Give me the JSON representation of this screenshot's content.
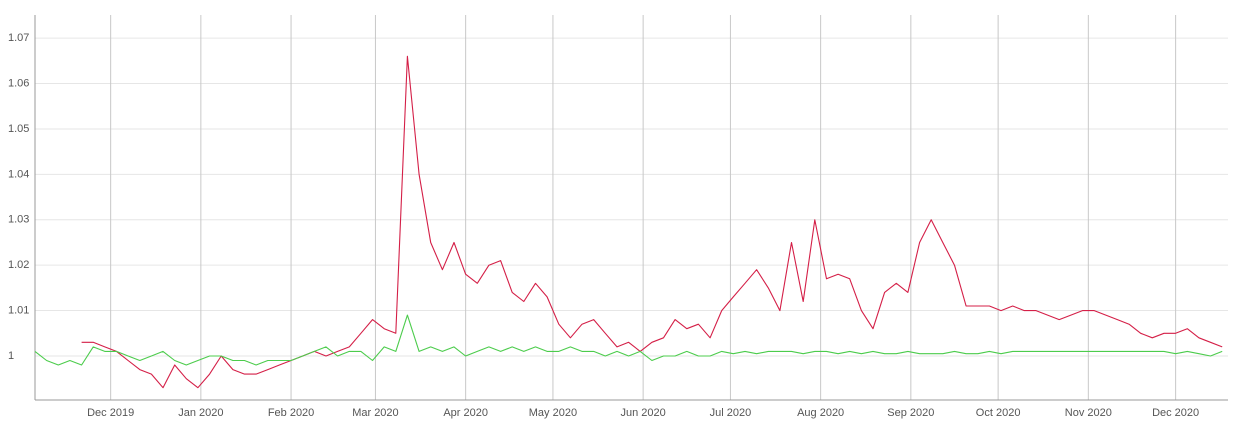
{
  "chart_data": {
    "type": "line",
    "x": [
      -26,
      -22,
      -18,
      -14,
      -10,
      -6,
      -2,
      2,
      6,
      10,
      14,
      18,
      22,
      26,
      30,
      34,
      38,
      42,
      46,
      50,
      54,
      58,
      62,
      66,
      70,
      74,
      78,
      82,
      86,
      90,
      94,
      98,
      102,
      106,
      110,
      114,
      118,
      122,
      126,
      130,
      134,
      138,
      142,
      146,
      150,
      154,
      158,
      162,
      166,
      170,
      174,
      178,
      182,
      186,
      190,
      194,
      198,
      202,
      206,
      210,
      214,
      218,
      222,
      226,
      230,
      234,
      238,
      242,
      246,
      250,
      254,
      258,
      262,
      266,
      270,
      274,
      278,
      282,
      286,
      290,
      294,
      298,
      302,
      306,
      310,
      314,
      318,
      322,
      326,
      330,
      334,
      338,
      342,
      346,
      350,
      354,
      358,
      362,
      366,
      370,
      374,
      378,
      382
    ],
    "series": [
      {
        "color": "#d41f47",
        "values": [
          null,
          null,
          null,
          null,
          1.003,
          1.003,
          1.002,
          1.001,
          0.999,
          0.997,
          0.996,
          0.993,
          0.998,
          0.995,
          0.993,
          0.996,
          1.0,
          0.997,
          0.996,
          0.996,
          0.997,
          0.998,
          0.999,
          1.0,
          1.001,
          1.0,
          1.001,
          1.002,
          1.005,
          1.008,
          1.006,
          1.005,
          1.066,
          1.04,
          1.025,
          1.019,
          1.025,
          1.018,
          1.016,
          1.02,
          1.021,
          1.014,
          1.012,
          1.016,
          1.013,
          1.007,
          1.004,
          1.007,
          1.008,
          1.005,
          1.002,
          1.003,
          1.001,
          1.003,
          1.004,
          1.008,
          1.006,
          1.007,
          1.004,
          1.01,
          1.013,
          1.016,
          1.019,
          1.015,
          1.01,
          1.025,
          1.012,
          1.03,
          1.017,
          1.018,
          1.017,
          1.01,
          1.006,
          1.014,
          1.016,
          1.014,
          1.025,
          1.03,
          1.025,
          1.02,
          1.011,
          1.011,
          1.011,
          1.01,
          1.011,
          1.01,
          1.01,
          1.009,
          1.008,
          1.009,
          1.01,
          1.01,
          1.009,
          1.008,
          1.007,
          1.005,
          1.004,
          1.005,
          1.005,
          1.006,
          1.004,
          1.003,
          1.002
        ]
      },
      {
        "color": "#4ccc4c",
        "values": [
          1.001,
          0.999,
          0.998,
          0.999,
          0.998,
          1.002,
          1.001,
          1.001,
          1.0,
          0.999,
          1.0,
          1.001,
          0.999,
          0.998,
          0.999,
          1.0,
          1.0,
          0.999,
          0.999,
          0.998,
          0.999,
          0.999,
          0.999,
          1.0,
          1.001,
          1.002,
          1.0,
          1.001,
          1.001,
          0.999,
          1.002,
          1.001,
          1.009,
          1.001,
          1.002,
          1.001,
          1.002,
          1.0,
          1.001,
          1.002,
          1.001,
          1.002,
          1.001,
          1.002,
          1.001,
          1.001,
          1.002,
          1.001,
          1.001,
          1.0,
          1.001,
          1.0,
          1.001,
          0.999,
          1.0,
          1.0,
          1.001,
          1.0,
          1.0,
          1.001,
          1.0005,
          1.001,
          1.0005,
          1.001,
          1.001,
          1.001,
          1.0005,
          1.001,
          1.001,
          1.0005,
          1.001,
          1.0005,
          1.001,
          1.0005,
          1.0005,
          1.001,
          1.0005,
          1.0005,
          1.0005,
          1.001,
          1.0005,
          1.0005,
          1.001,
          1.0005,
          1.001,
          1.001,
          1.001,
          1.001,
          1.001,
          1.001,
          1.001,
          1.001,
          1.001,
          1.001,
          1.001,
          1.001,
          1.001,
          1.001,
          1.0005,
          1.001,
          1.0005,
          1.0,
          1.001
        ]
      }
    ],
    "xlim": [
      -26,
      384
    ],
    "ylim": [
      0.9903,
      1.0751
    ],
    "xticks": [
      {
        "value": 0,
        "label": "Dec 2019"
      },
      {
        "value": 31,
        "label": "Jan 2020"
      },
      {
        "value": 62,
        "label": "Feb 2020"
      },
      {
        "value": 91,
        "label": "Mar 2020"
      },
      {
        "value": 122,
        "label": "Apr 2020"
      },
      {
        "value": 152,
        "label": "May 2020"
      },
      {
        "value": 183,
        "label": "Jun 2020"
      },
      {
        "value": 213,
        "label": "Jul 2020"
      },
      {
        "value": 244,
        "label": "Aug 2020"
      },
      {
        "value": 275,
        "label": "Sep 2020"
      },
      {
        "value": 305,
        "label": "Oct 2020"
      },
      {
        "value": 336,
        "label": "Nov 2020"
      },
      {
        "value": 366,
        "label": "Dec 2020"
      }
    ],
    "yticks": [
      1,
      1.01,
      1.02,
      1.03,
      1.04,
      1.05,
      1.06,
      1.07
    ],
    "grid": true
  }
}
